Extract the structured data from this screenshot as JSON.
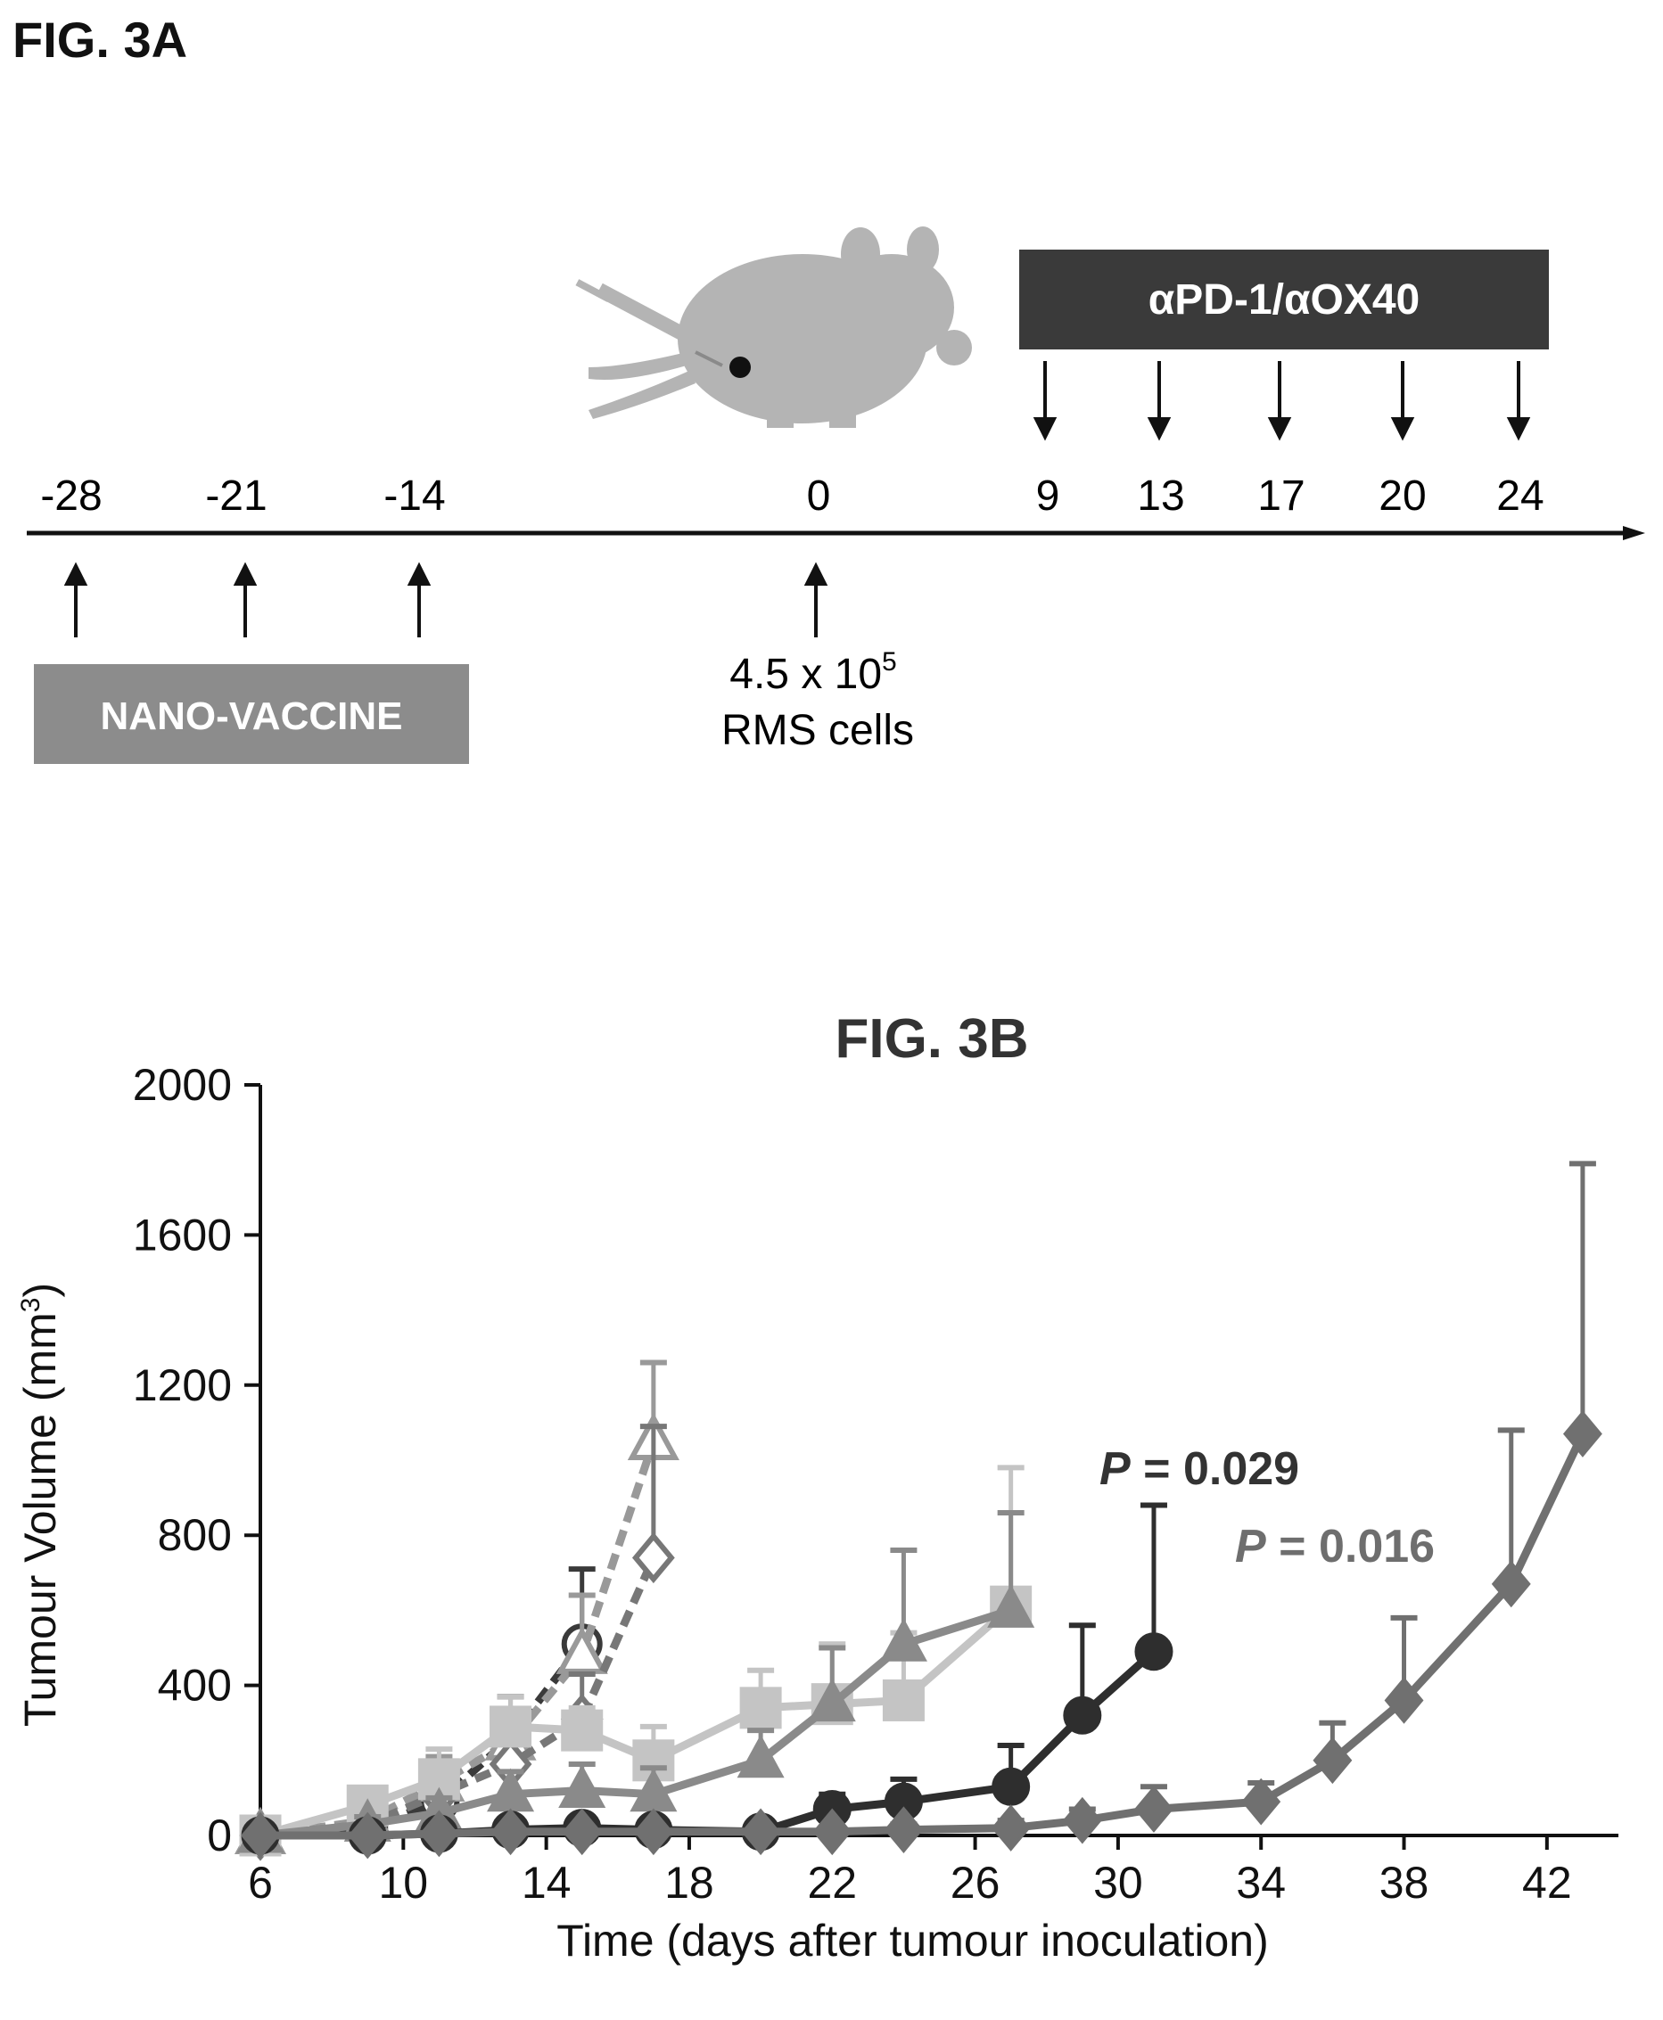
{
  "figure_a": {
    "title": "FIG. 3A",
    "timeline_ticks": [
      "-28",
      "-21",
      "-14",
      "0",
      "9",
      "13",
      "17",
      "20",
      "24"
    ],
    "vaccine_box_label": "NANO-VACCINE",
    "treatment_box_label": "αPD-1/αOX40",
    "inoculation_label_line1": "4.5 x 10",
    "inoculation_label_exponent": "5",
    "inoculation_label_line2": "RMS cells",
    "colors": {
      "treatment_box": "#3a3a3a",
      "vaccine_box": "#8c8c8c",
      "mouse": "#b4b4b4"
    },
    "icons": [
      "mouse-with-syringe-icon",
      "up-arrow-icon",
      "down-arrow-icon"
    ]
  },
  "figure_b": {
    "title": "FIG. 3B"
  },
  "chart_data": {
    "type": "line",
    "xlabel": "Time (days after tumour inoculation)",
    "ylabel_main": "Tumour Volume (mm",
    "ylabel_sup": "3",
    "ylabel_end": ")",
    "xlim": [
      6,
      44
    ],
    "ylim": [
      0,
      2000
    ],
    "xticks": [
      6,
      10,
      14,
      18,
      22,
      26,
      30,
      34,
      38,
      42
    ],
    "yticks": [
      0,
      400,
      800,
      1200,
      1600,
      2000
    ],
    "grid": false,
    "annotations": [
      {
        "italic": "P",
        "text": " = 0.029",
        "color": "#333333"
      },
      {
        "italic": "P",
        "text": " = 0.016",
        "color": "#6e6e6e"
      }
    ],
    "series": [
      {
        "color": "#3a3a3a",
        "marker": "circle",
        "filled": false,
        "dashed": true,
        "x": [
          6,
          9,
          11,
          13,
          15
        ],
        "y": [
          0,
          20,
          90,
          260,
          510
        ],
        "err": [
          0,
          25,
          60,
          110,
          200
        ]
      },
      {
        "color": "#999999",
        "marker": "triangle",
        "filled": false,
        "dashed": true,
        "x": [
          6,
          9,
          11,
          13,
          15,
          17
        ],
        "y": [
          0,
          40,
          140,
          250,
          480,
          1050
        ],
        "err": [
          0,
          30,
          70,
          80,
          160,
          210
        ]
      },
      {
        "color": "#777777",
        "marker": "diamond",
        "filled": false,
        "dashed": true,
        "x": [
          6,
          9,
          11,
          13,
          15,
          17
        ],
        "y": [
          0,
          30,
          110,
          190,
          310,
          740
        ],
        "err": [
          0,
          20,
          50,
          80,
          120,
          350
        ]
      },
      {
        "color": "#c4c4c4",
        "marker": "square",
        "filled": true,
        "dashed": false,
        "x": [
          6,
          9,
          11,
          13,
          15,
          17,
          20,
          22,
          24,
          27
        ],
        "y": [
          0,
          80,
          150,
          290,
          280,
          200,
          340,
          350,
          360,
          610
        ],
        "err": [
          0,
          30,
          80,
          80,
          60,
          90,
          100,
          160,
          180,
          370
        ]
      },
      {
        "color": "#8a8a8a",
        "marker": "triangle",
        "filled": true,
        "dashed": false,
        "x": [
          6,
          9,
          11,
          13,
          15,
          17,
          20,
          22,
          24,
          27
        ],
        "y": [
          0,
          30,
          60,
          110,
          120,
          110,
          200,
          350,
          510,
          600
        ],
        "err": [
          0,
          20,
          40,
          60,
          70,
          70,
          80,
          150,
          250,
          260
        ]
      },
      {
        "color": "#2e2e2e",
        "marker": "circle",
        "filled": true,
        "dashed": false,
        "x": [
          6,
          9,
          11,
          13,
          15,
          17,
          20,
          22,
          24,
          27,
          29,
          31
        ],
        "y": [
          0,
          0,
          5,
          15,
          20,
          15,
          10,
          70,
          90,
          130,
          320,
          490
        ],
        "err": [
          0,
          5,
          10,
          20,
          20,
          15,
          15,
          40,
          60,
          110,
          240,
          390
        ]
      },
      {
        "color": "#707070",
        "marker": "diamond",
        "filled": true,
        "dashed": false,
        "x": [
          6,
          9,
          11,
          13,
          15,
          17,
          20,
          22,
          24,
          27,
          29,
          31,
          34,
          36,
          38,
          41,
          43
        ],
        "y": [
          0,
          0,
          5,
          10,
          10,
          10,
          10,
          10,
          15,
          20,
          40,
          70,
          90,
          200,
          360,
          670,
          1070
        ],
        "err": [
          0,
          5,
          10,
          10,
          10,
          10,
          10,
          10,
          15,
          20,
          30,
          60,
          50,
          100,
          220,
          410,
          720
        ]
      }
    ]
  }
}
